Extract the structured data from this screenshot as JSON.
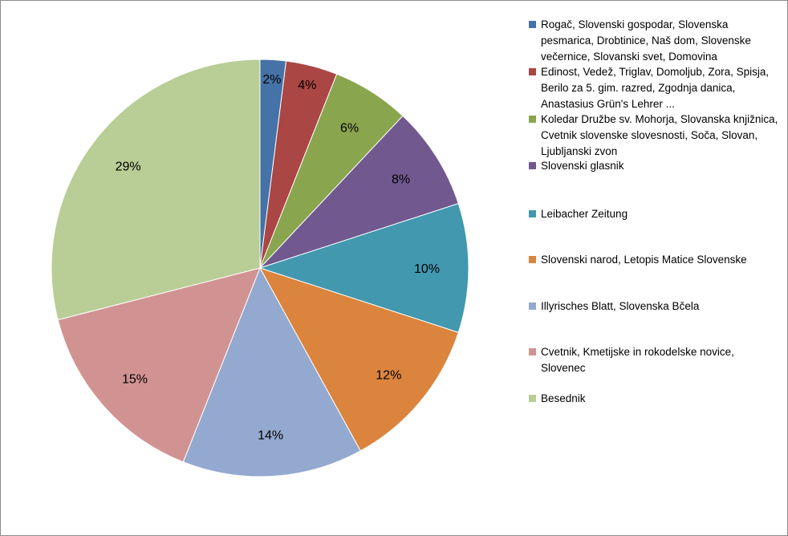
{
  "chart_data": {
    "type": "pie",
    "title": "",
    "slices": [
      {
        "label": "Rogač, Slovenski gospodar, Slovenska pesmarica, Drobtinice, Naš dom, Slovenske večernice,  Slovanski svet, Domovina",
        "value": 2,
        "display": "2%",
        "color": "#4572a7"
      },
      {
        "label": "Edinost, Vedež, Triglav, Domoljub, Zora, Spisja, Berilo za 5. gim. razred, Zgodnja danica, Anastasius Grün's Lehrer ...",
        "value": 4,
        "display": "4%",
        "color": "#aa4643"
      },
      {
        "label": "Koledar Družbe sv. Mohorja, Slovanska knjižnica, Cvetnik slovenske slovesnosti, Soča, Slovan, Ljubljanski zvon",
        "value": 6,
        "display": "6%",
        "color": "#89a54e"
      },
      {
        "label": "Slovenski glasnik",
        "value": 8,
        "display": "8%",
        "color": "#71588f"
      },
      {
        "label": "Leibacher Zeitung",
        "value": 10,
        "display": "10%",
        "color": "#4198af"
      },
      {
        "label": "Slovenski narod, Letopis Matice Slovenske",
        "value": 12,
        "display": "12%",
        "color": "#db843d"
      },
      {
        "label": "Illyrisches Blatt, Slovenska Bčela",
        "value": 14,
        "display": "14%",
        "color": "#93a9cf"
      },
      {
        "label": "Cvetnik, Kmetijske in rokodelske novice, Slovenec",
        "value": 15,
        "display": "15%",
        "color": "#d19392"
      },
      {
        "label": "Besednik",
        "value": 29,
        "display": "29%",
        "color": "#b9cd96"
      }
    ],
    "legend_position": "right"
  }
}
